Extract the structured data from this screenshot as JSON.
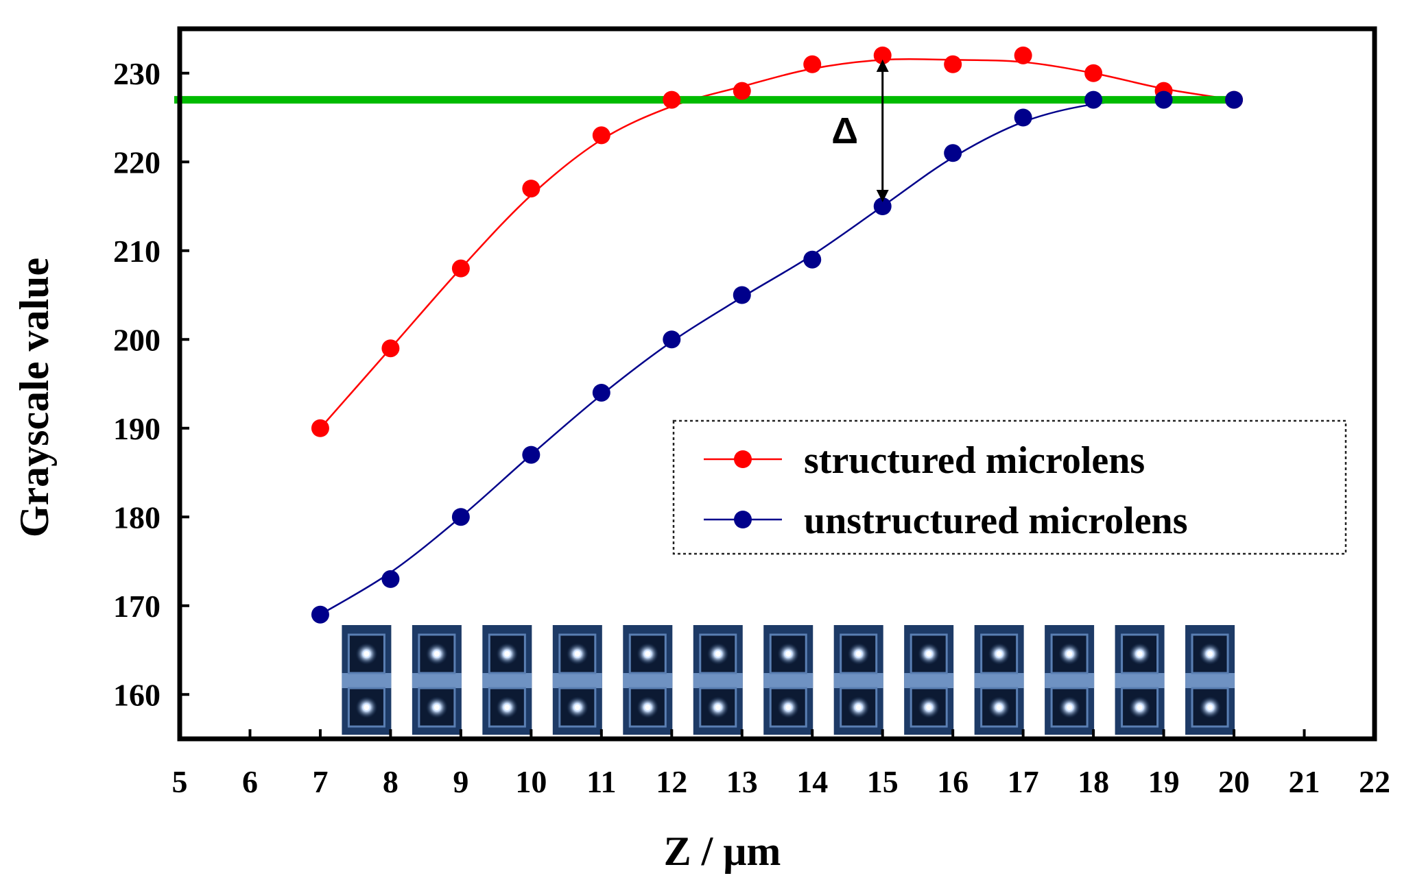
{
  "chart_data": {
    "type": "scatter",
    "title": "",
    "xlabel": "Z / μm",
    "ylabel": "Grayscale value",
    "xlim": [
      5,
      22
    ],
    "ylim": [
      155,
      235
    ],
    "xticks": [
      "5",
      "6",
      "7",
      "8",
      "9",
      "10",
      "11",
      "12",
      "13",
      "14",
      "15",
      "16",
      "17",
      "18",
      "19",
      "20",
      "21",
      "22"
    ],
    "yticks": [
      "160",
      "170",
      "180",
      "190",
      "200",
      "210",
      "220",
      "230"
    ],
    "grid": false,
    "legend_position": "lower-right",
    "series": [
      {
        "name": "structured microlens",
        "color": "#ff0000",
        "x": [
          7,
          8,
          9,
          10,
          11,
          12,
          13,
          14,
          15,
          16,
          17,
          18,
          19,
          20
        ],
        "values": [
          190,
          199,
          208,
          217,
          223,
          227,
          228,
          231,
          232,
          231,
          232,
          230,
          228,
          227
        ]
      },
      {
        "name": "unstructured microlens",
        "color": "#00008b",
        "x": [
          7,
          8,
          9,
          10,
          11,
          12,
          13,
          14,
          15,
          16,
          17,
          18,
          19,
          20
        ],
        "values": [
          169,
          173,
          180,
          187,
          194,
          200,
          205,
          209,
          215,
          221,
          225,
          227,
          227,
          227
        ]
      }
    ],
    "reference_line": {
      "y": 227,
      "color": "#00bb00"
    },
    "annotation": {
      "label": "Δ",
      "x": 15,
      "y_top": 232,
      "y_bottom": 215
    },
    "inset_images": {
      "description_icon": "microlens-focus-image",
      "x": [
        8,
        9,
        10,
        11,
        12,
        13,
        14,
        15,
        16,
        17,
        18,
        19,
        20
      ]
    }
  }
}
